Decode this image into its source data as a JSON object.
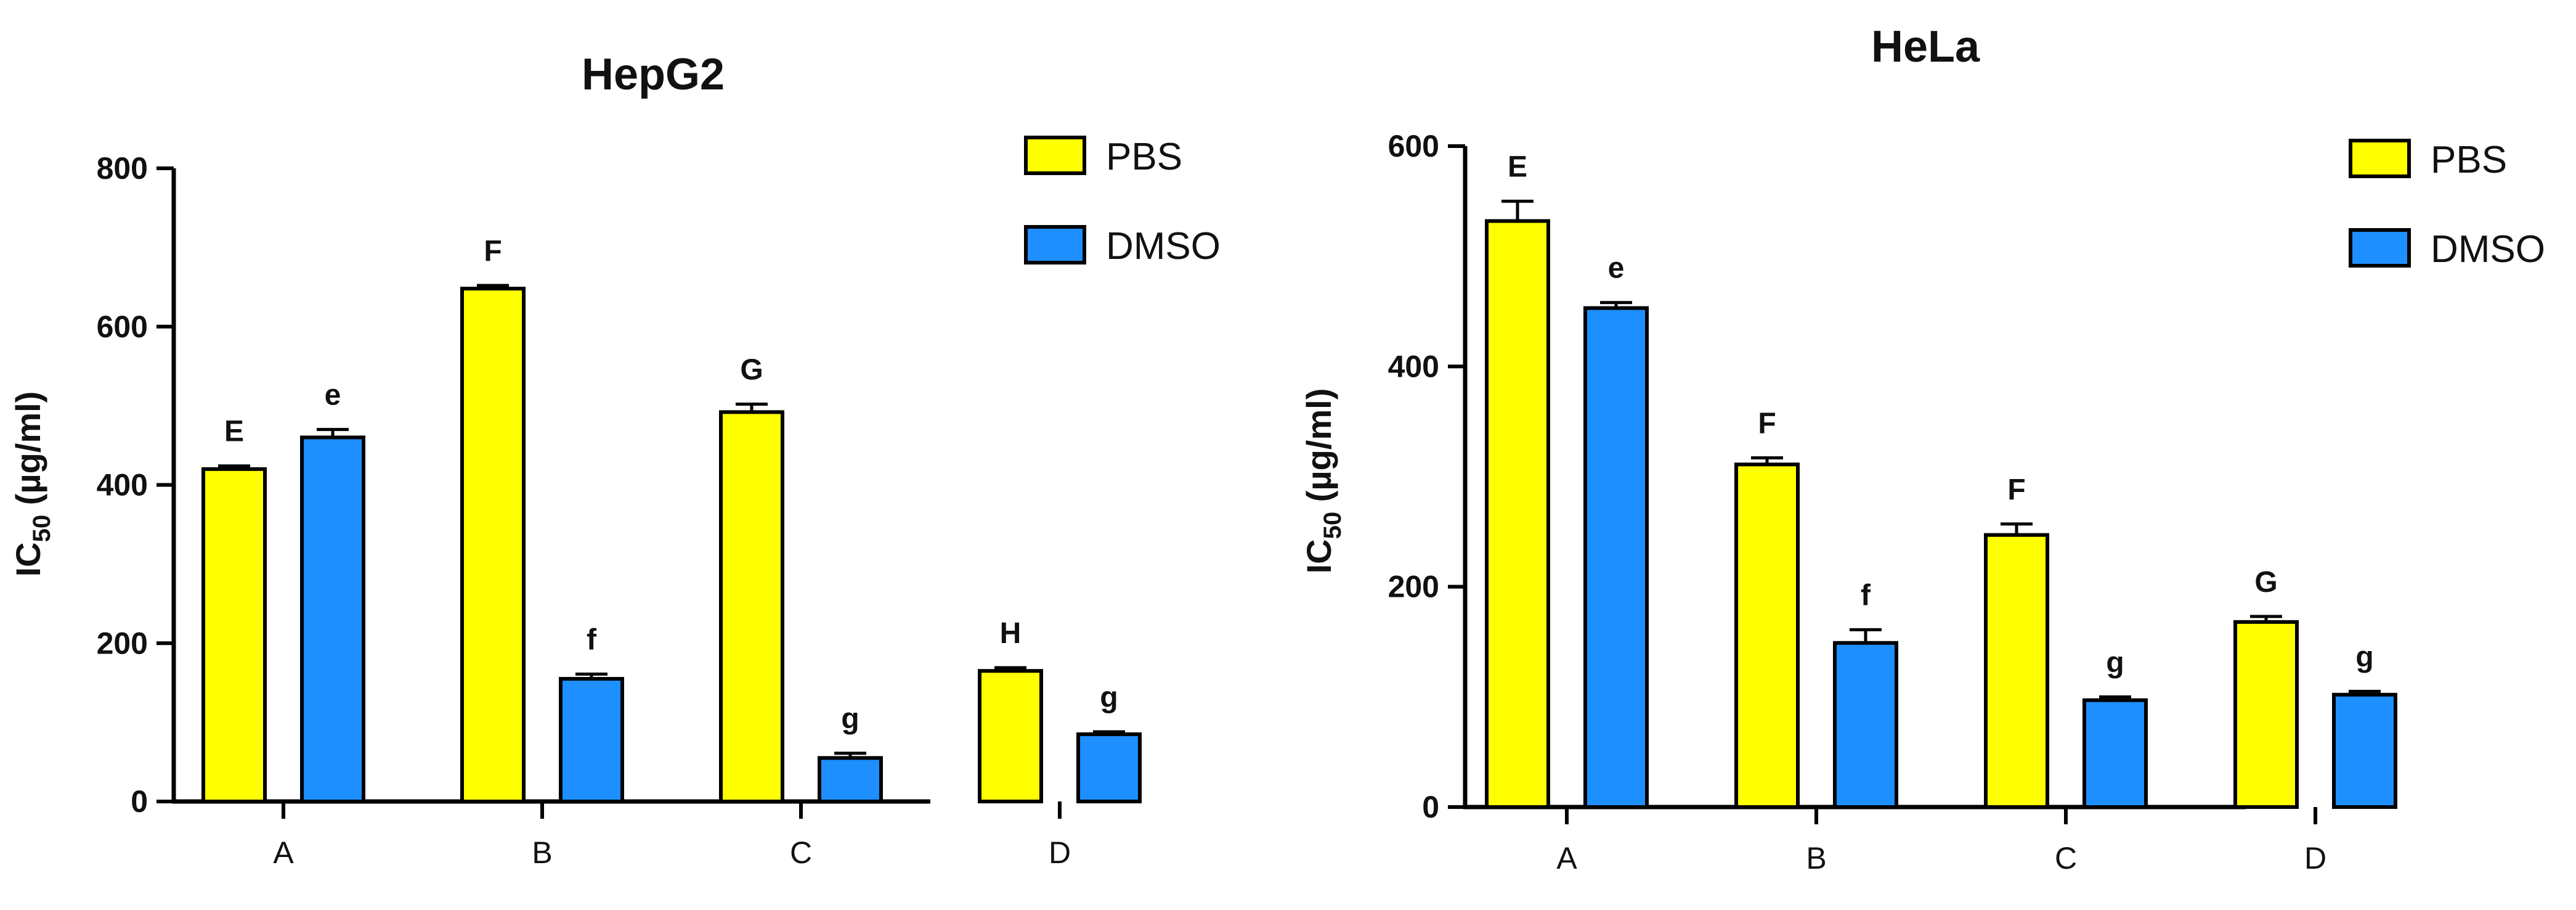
{
  "chart_data": [
    {
      "type": "bar",
      "title": "HepG2",
      "ylabel": "IC50 (µg/ml)",
      "ylabel_main": "IC",
      "ylabel_sub": "50",
      "ylabel_rest": " (µg/ml)",
      "xlabel": "",
      "categories": [
        "A",
        "B",
        "C",
        "D"
      ],
      "ylim": [
        0,
        800
      ],
      "yticks": [
        0,
        200,
        400,
        600,
        800
      ],
      "legend_position": "top-right",
      "series": [
        {
          "name": "PBS",
          "color": "#ffff00",
          "values": [
            420,
            648,
            492,
            165
          ],
          "errors": [
            4,
            4,
            10,
            4
          ],
          "labels": [
            "E",
            "F",
            "G",
            "H"
          ]
        },
        {
          "name": "DMSO",
          "color": "#1e8fff",
          "values": [
            460,
            155,
            55,
            85
          ],
          "errors": [
            10,
            6,
            6,
            3
          ],
          "labels": [
            "e",
            "f",
            "g",
            "g"
          ]
        }
      ]
    },
    {
      "type": "bar",
      "title": "HeLa",
      "ylabel": "IC50 (µg/ml)",
      "ylabel_main": "IC",
      "ylabel_sub": "50",
      "ylabel_rest": " (µg/ml)",
      "xlabel": "",
      "categories": [
        "A",
        "B",
        "C",
        "D"
      ],
      "ylim": [
        0,
        600
      ],
      "yticks": [
        0,
        200,
        400,
        600
      ],
      "legend_position": "top-right",
      "series": [
        {
          "name": "PBS",
          "color": "#ffff00",
          "values": [
            532,
            311,
            247,
            168
          ],
          "errors": [
            18,
            6,
            10,
            5
          ],
          "labels": [
            "E",
            "F",
            "F",
            "G"
          ]
        },
        {
          "name": "DMSO",
          "color": "#1e8fff",
          "values": [
            453,
            149,
            97,
            102
          ],
          "errors": [
            5,
            12,
            3,
            3
          ],
          "labels": [
            "e",
            "f",
            "g",
            "g"
          ]
        }
      ]
    }
  ]
}
